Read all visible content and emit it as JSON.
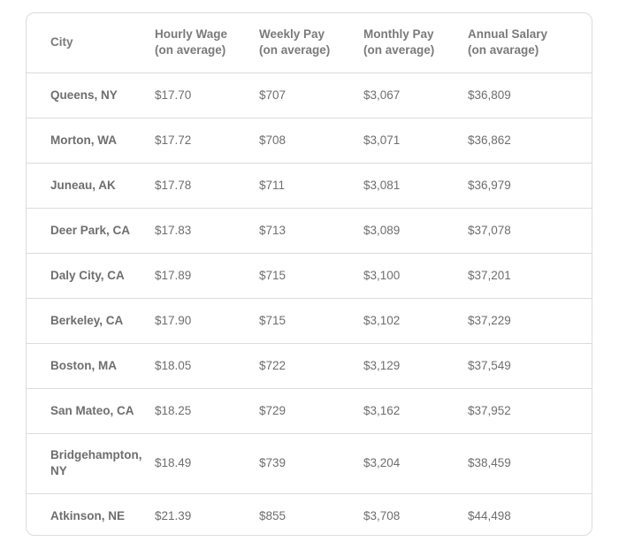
{
  "headers": {
    "city": "City",
    "hourly": [
      "Hourly Wage",
      "(on average)"
    ],
    "weekly": [
      "Weekly Pay",
      "(on average)"
    ],
    "monthly": [
      "Monthly Pay",
      "(on average)"
    ],
    "annual": [
      "Annual Salary",
      "(on avarage)"
    ]
  },
  "rows": [
    {
      "city": "Queens, NY",
      "hourly": "$17.70",
      "weekly": "$707",
      "monthly": "$3,067",
      "annual": "$36,809"
    },
    {
      "city": "Morton, WA",
      "hourly": "$17.72",
      "weekly": "$708",
      "monthly": "$3,071",
      "annual": "$36,862"
    },
    {
      "city": "Juneau, AK",
      "hourly": "$17.78",
      "weekly": "$711",
      "monthly": "$3,081",
      "annual": "$36,979"
    },
    {
      "city": "Deer Park, CA",
      "hourly": "$17.83",
      "weekly": "$713",
      "monthly": "$3,089",
      "annual": "$37,078"
    },
    {
      "city": "Daly City, CA",
      "hourly": "$17.89",
      "weekly": "$715",
      "monthly": "$3,100",
      "annual": "$37,201"
    },
    {
      "city": "Berkeley, CA",
      "hourly": "$17.90",
      "weekly": "$715",
      "monthly": "$3,102",
      "annual": "$37,229"
    },
    {
      "city": "Boston, MA",
      "hourly": "$18.05",
      "weekly": "$722",
      "monthly": "$3,129",
      "annual": "$37,549"
    },
    {
      "city": "San Mateo, CA",
      "hourly": "$18.25",
      "weekly": "$729",
      "monthly": "$3,162",
      "annual": "$37,952"
    },
    {
      "city": "Bridgehampton, NY",
      "hourly": "$18.49",
      "weekly": "$739",
      "monthly": "$3,204",
      "annual": "$38,459"
    },
    {
      "city": "Atkinson, NE",
      "hourly": "$21.39",
      "weekly": "$855",
      "monthly": "$3,708",
      "annual": "$44,498"
    }
  ]
}
